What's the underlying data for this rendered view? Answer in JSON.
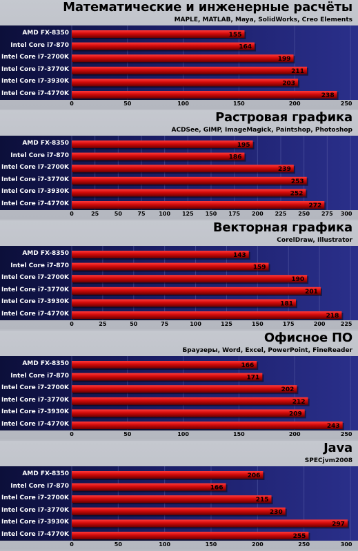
{
  "chart_data": [
    {
      "type": "bar",
      "title": "Математические и инженерные расчёты",
      "subtitle": "MAPLE, MATLAB, Maya, SolidWorks, Creo Elements",
      "categories": [
        "AMD FX-8350",
        "Intel Core i7-870",
        "Intel Core i7-2700K",
        "Intel Core i7-3770K",
        "Intel Core i7-3930K",
        "Intel Core i7-4770K"
      ],
      "values": [
        155,
        164,
        199,
        211,
        203,
        238
      ],
      "xlim": [
        0,
        250
      ],
      "ticks": [
        0,
        50,
        100,
        150,
        200,
        250
      ]
    },
    {
      "type": "bar",
      "title": "Растровая графика",
      "subtitle": "ACDSee, GIMP, ImageMagick, Paintshop, Photoshop",
      "categories": [
        "AMD FX-8350",
        "Intel Core i7-870",
        "Intel Core i7-2700K",
        "Intel Core i7-3770K",
        "Intel Core i7-3930K",
        "Intel Core i7-4770K"
      ],
      "values": [
        195,
        186,
        239,
        253,
        252,
        272
      ],
      "xlim": [
        0,
        300
      ],
      "ticks": [
        0,
        25,
        50,
        75,
        100,
        125,
        150,
        175,
        200,
        225,
        250,
        275,
        300
      ]
    },
    {
      "type": "bar",
      "title": "Векторная графика",
      "subtitle": "CorelDraw, Illustrator",
      "categories": [
        "AMD FX-8350",
        "Intel Core i7-870",
        "Intel Core i7-2700K",
        "Intel Core i7-3770K",
        "Intel Core i7-3930K",
        "Intel Core i7-4770K"
      ],
      "values": [
        143,
        159,
        190,
        201,
        181,
        218
      ],
      "xlim": [
        0,
        225
      ],
      "ticks": [
        0,
        25,
        50,
        75,
        100,
        125,
        150,
        175,
        200,
        225
      ]
    },
    {
      "type": "bar",
      "title": "Офисное ПО",
      "subtitle": "Браузеры, Word, Excel, PowerPoint, FineReader",
      "categories": [
        "AMD FX-8350",
        "Intel Core i7-870",
        "Intel Core i7-2700K",
        "Intel Core i7-3770K",
        "Intel Core i7-3930K",
        "Intel Core i7-4770K"
      ],
      "values": [
        166,
        171,
        202,
        212,
        209,
        243
      ],
      "xlim": [
        0,
        250
      ],
      "ticks": [
        0,
        50,
        100,
        150,
        200,
        250
      ]
    },
    {
      "type": "bar",
      "title": "Java",
      "subtitle": "SPECjvm2008",
      "categories": [
        "AMD FX-8350",
        "Intel Core i7-870",
        "Intel Core i7-2700K",
        "Intel Core i7-3770K",
        "Intel Core i7-3930K",
        "Intel Core i7-4770K"
      ],
      "values": [
        206,
        166,
        215,
        230,
        297,
        255
      ],
      "xlim": [
        0,
        300
      ],
      "ticks": [
        0,
        50,
        100,
        150,
        200,
        250,
        300
      ]
    }
  ]
}
